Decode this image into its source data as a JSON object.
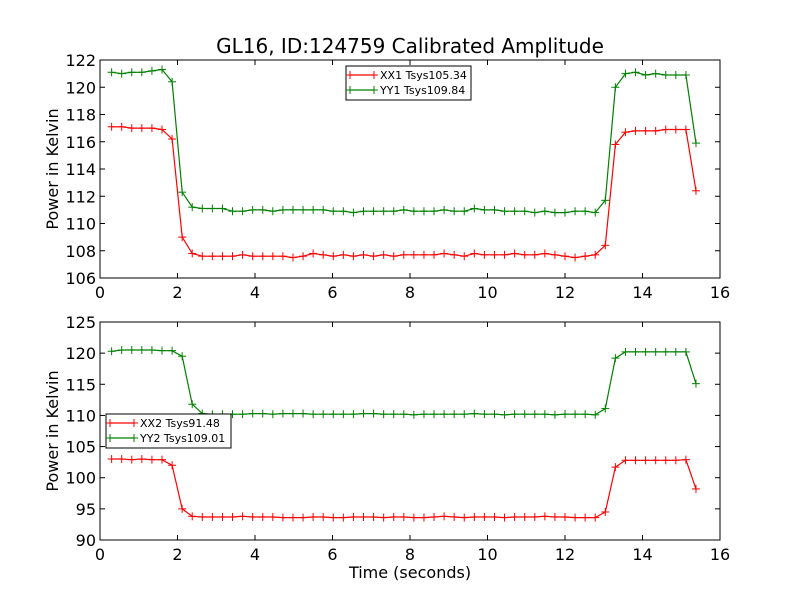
{
  "figure": {
    "title": "GL16, ID:124759 Calibrated Amplitude"
  },
  "chart_data": [
    {
      "type": "line",
      "title": "GL16, ID:124759 Calibrated Amplitude",
      "xlabel": "",
      "ylabel": "Power in Kelvin",
      "xlim": [
        0,
        16
      ],
      "ylim": [
        106,
        122
      ],
      "xticks": [
        0,
        2,
        4,
        6,
        8,
        10,
        12,
        14,
        16
      ],
      "yticks": [
        106,
        108,
        110,
        112,
        114,
        116,
        118,
        120,
        122
      ],
      "grid": false,
      "legend_position": "top-center",
      "x": [
        0.3,
        0.56,
        0.82,
        1.08,
        1.34,
        1.6,
        1.86,
        2.12,
        2.38,
        2.64,
        2.9,
        3.16,
        3.42,
        3.68,
        3.94,
        4.2,
        4.46,
        4.72,
        4.98,
        5.24,
        5.5,
        5.76,
        6.02,
        6.28,
        6.54,
        6.8,
        7.06,
        7.32,
        7.58,
        7.84,
        8.1,
        8.36,
        8.62,
        8.88,
        9.14,
        9.4,
        9.66,
        9.92,
        10.18,
        10.44,
        10.7,
        10.96,
        11.22,
        11.48,
        11.74,
        12.0,
        12.26,
        12.52,
        12.78,
        13.04,
        13.3,
        13.56,
        13.82,
        14.08,
        14.34,
        14.6,
        14.86,
        15.12,
        15.38
      ],
      "series": [
        {
          "name": "XX1 Tsys105.34",
          "color": "#ff0000",
          "values": [
            117.1,
            117.1,
            117.0,
            117.0,
            117.0,
            116.9,
            116.2,
            109.0,
            107.8,
            107.6,
            107.6,
            107.6,
            107.6,
            107.7,
            107.6,
            107.6,
            107.6,
            107.6,
            107.5,
            107.6,
            107.8,
            107.7,
            107.6,
            107.7,
            107.6,
            107.7,
            107.6,
            107.7,
            107.6,
            107.7,
            107.7,
            107.7,
            107.7,
            107.8,
            107.7,
            107.6,
            107.8,
            107.7,
            107.7,
            107.7,
            107.8,
            107.7,
            107.7,
            107.8,
            107.7,
            107.6,
            107.5,
            107.6,
            107.7,
            108.4,
            115.8,
            116.7,
            116.8,
            116.8,
            116.8,
            116.9,
            116.9,
            116.9,
            112.4
          ]
        },
        {
          "name": "YY1 Tsys109.84",
          "color": "#008000",
          "values": [
            121.1,
            121.0,
            121.1,
            121.1,
            121.2,
            121.3,
            120.4,
            112.3,
            111.2,
            111.1,
            111.1,
            111.1,
            110.9,
            110.9,
            111.0,
            111.0,
            110.9,
            111.0,
            111.0,
            111.0,
            111.0,
            111.0,
            110.9,
            110.9,
            110.8,
            110.9,
            110.9,
            110.9,
            110.9,
            111.0,
            110.9,
            110.9,
            110.9,
            111.0,
            110.9,
            110.9,
            111.1,
            111.0,
            111.0,
            110.9,
            110.9,
            110.9,
            110.8,
            110.9,
            110.8,
            110.8,
            110.9,
            110.9,
            110.8,
            111.7,
            120.0,
            121.0,
            121.1,
            120.9,
            121.0,
            120.9,
            120.9,
            120.9,
            115.9
          ]
        }
      ]
    },
    {
      "type": "line",
      "title": "",
      "xlabel": "Time (seconds)",
      "ylabel": "Power in Kelvin",
      "xlim": [
        0,
        16
      ],
      "ylim": [
        90,
        125
      ],
      "xticks": [
        0,
        2,
        4,
        6,
        8,
        10,
        12,
        14,
        16
      ],
      "yticks": [
        90,
        95,
        100,
        105,
        110,
        115,
        120,
        125
      ],
      "grid": false,
      "legend_position": "center-left",
      "x": [
        0.3,
        0.56,
        0.82,
        1.08,
        1.34,
        1.6,
        1.86,
        2.12,
        2.38,
        2.64,
        2.9,
        3.16,
        3.42,
        3.68,
        3.94,
        4.2,
        4.46,
        4.72,
        4.98,
        5.24,
        5.5,
        5.76,
        6.02,
        6.28,
        6.54,
        6.8,
        7.06,
        7.32,
        7.58,
        7.84,
        8.1,
        8.36,
        8.62,
        8.88,
        9.14,
        9.4,
        9.66,
        9.92,
        10.18,
        10.44,
        10.7,
        10.96,
        11.22,
        11.48,
        11.74,
        12.0,
        12.26,
        12.52,
        12.78,
        13.04,
        13.3,
        13.56,
        13.82,
        14.08,
        14.34,
        14.6,
        14.86,
        15.12,
        15.38
      ],
      "series": [
        {
          "name": "XX2 Tsys91.48",
          "color": "#ff0000",
          "values": [
            103.0,
            103.0,
            102.9,
            103.0,
            102.9,
            102.9,
            102.0,
            95.0,
            93.8,
            93.7,
            93.7,
            93.7,
            93.7,
            93.8,
            93.7,
            93.7,
            93.7,
            93.6,
            93.6,
            93.6,
            93.7,
            93.7,
            93.6,
            93.6,
            93.7,
            93.7,
            93.7,
            93.6,
            93.7,
            93.7,
            93.6,
            93.6,
            93.7,
            93.8,
            93.7,
            93.6,
            93.7,
            93.7,
            93.7,
            93.6,
            93.7,
            93.7,
            93.7,
            93.8,
            93.7,
            93.7,
            93.6,
            93.6,
            93.6,
            94.5,
            101.7,
            102.8,
            102.8,
            102.8,
            102.8,
            102.8,
            102.8,
            102.9,
            98.2
          ]
        },
        {
          "name": "YY2 Tsys109.01",
          "color": "#008000",
          "values": [
            120.3,
            120.5,
            120.5,
            120.5,
            120.5,
            120.4,
            120.4,
            119.5,
            111.8,
            110.3,
            110.2,
            110.2,
            110.2,
            110.2,
            110.3,
            110.3,
            110.2,
            110.3,
            110.3,
            110.3,
            110.2,
            110.2,
            110.2,
            110.2,
            110.2,
            110.3,
            110.3,
            110.2,
            110.2,
            110.2,
            110.1,
            110.2,
            110.2,
            110.2,
            110.2,
            110.2,
            110.3,
            110.2,
            110.2,
            110.1,
            110.2,
            110.2,
            110.2,
            110.2,
            110.1,
            110.2,
            110.2,
            110.2,
            110.1,
            111.1,
            119.2,
            120.2,
            120.2,
            120.2,
            120.2,
            120.2,
            120.2,
            120.2,
            115.1
          ]
        }
      ]
    }
  ]
}
